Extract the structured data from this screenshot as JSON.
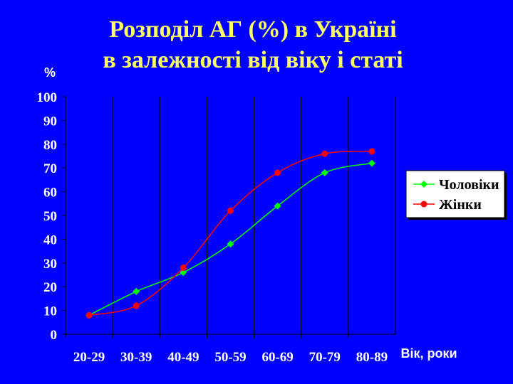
{
  "chart_data": {
    "type": "line",
    "title": [
      "Розподіл АГ (%) в Україні",
      "в залежності від віку і статі"
    ],
    "ylabel": "%",
    "xlabel": "Вік, роки",
    "categories": [
      "20-29",
      "30-39",
      "40-49",
      "50-59",
      "60-69",
      "70-79",
      "80-89"
    ],
    "ylim": [
      0,
      100
    ],
    "yticks": [
      0,
      10,
      20,
      30,
      40,
      50,
      60,
      70,
      80,
      90,
      100
    ],
    "grid": "vertical",
    "legend": "right",
    "series": [
      {
        "name": "Чоловіки",
        "color": "#00ff00",
        "marker": "diamond",
        "values": [
          8,
          18,
          26,
          38,
          54,
          68,
          72
        ]
      },
      {
        "name": "Жінки",
        "color": "#ff0000",
        "marker": "circle",
        "values": [
          8,
          12,
          28,
          52,
          68,
          76,
          77
        ]
      }
    ]
  }
}
